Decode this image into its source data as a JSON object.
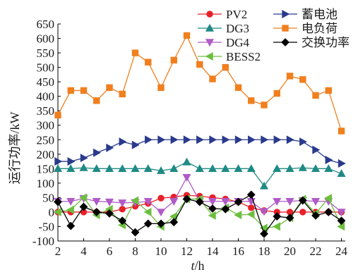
{
  "chart_data": {
    "type": "line",
    "xlabel_var": "t",
    "xlabel_unit": "/h",
    "ylabel": "运行功率/kW",
    "xlim": [
      2,
      24.3
    ],
    "ylim": [
      -100,
      650
    ],
    "x_ticks": [
      2,
      4,
      6,
      8,
      10,
      12,
      14,
      16,
      18,
      20,
      22,
      24
    ],
    "y_ticks": [
      -100,
      -50,
      0,
      50,
      100,
      150,
      200,
      250,
      300,
      350,
      400,
      450,
      500,
      550,
      600,
      650
    ],
    "grid": false,
    "legend_position": "top-right",
    "x": [
      2,
      3,
      4,
      5,
      6,
      7,
      8,
      9,
      10,
      11,
      12,
      13,
      14,
      15,
      16,
      17,
      18,
      19,
      20,
      21,
      22,
      23,
      24
    ],
    "series": [
      {
        "name": "PV2",
        "color": "#e8202a",
        "marker": "circle",
        "values": [
          0,
          0,
          0,
          0,
          0,
          10,
          20,
          30,
          48,
          52,
          58,
          55,
          50,
          45,
          35,
          15,
          5,
          0,
          0,
          0,
          0,
          0,
          0
        ]
      },
      {
        "name": "DG3",
        "color": "#1f8a84",
        "marker": "triangle-up",
        "values": [
          150,
          150,
          153,
          150,
          150,
          150,
          150,
          150,
          143,
          150,
          173,
          150,
          150,
          150,
          150,
          150,
          90,
          150,
          150,
          153,
          150,
          150,
          133
        ]
      },
      {
        "name": "DG4",
        "color": "#b05bc7",
        "marker": "triangle-down",
        "values": [
          37,
          37,
          47,
          37,
          35,
          32,
          33,
          37,
          0,
          37,
          120,
          37,
          37,
          37,
          37,
          37,
          2,
          37,
          37,
          40,
          37,
          37,
          0
        ]
      },
      {
        "name": "BESS2",
        "color": "#6cbf3e",
        "marker": "triangle-left",
        "values": [
          0,
          8,
          50,
          -10,
          10,
          -45,
          40,
          0,
          -50,
          -15,
          45,
          45,
          -12,
          15,
          -10,
          -8,
          -55,
          -50,
          -20,
          45,
          -5,
          48,
          -50
        ]
      },
      {
        "name": "蓄电池",
        "color": "#2a3a8c",
        "marker": "triangle-right",
        "values": [
          175,
          175,
          187,
          205,
          222,
          243,
          232,
          250,
          250,
          250,
          250,
          250,
          250,
          250,
          250,
          250,
          250,
          250,
          250,
          243,
          215,
          180,
          168
        ]
      },
      {
        "name": "电负荷",
        "color": "#f07f1e",
        "marker": "square",
        "values": [
          335,
          420,
          420,
          385,
          430,
          408,
          550,
          518,
          430,
          525,
          610,
          510,
          460,
          500,
          430,
          385,
          370,
          410,
          470,
          458,
          403,
          420,
          280
        ]
      },
      {
        "name": "交换功率",
        "color": "#000000",
        "marker": "diamond",
        "values": [
          35,
          -48,
          18,
          0,
          -5,
          -30,
          -70,
          -40,
          -40,
          -35,
          45,
          35,
          12,
          10,
          35,
          60,
          -75,
          -15,
          -20,
          40,
          -12,
          0,
          -30
        ]
      }
    ]
  }
}
